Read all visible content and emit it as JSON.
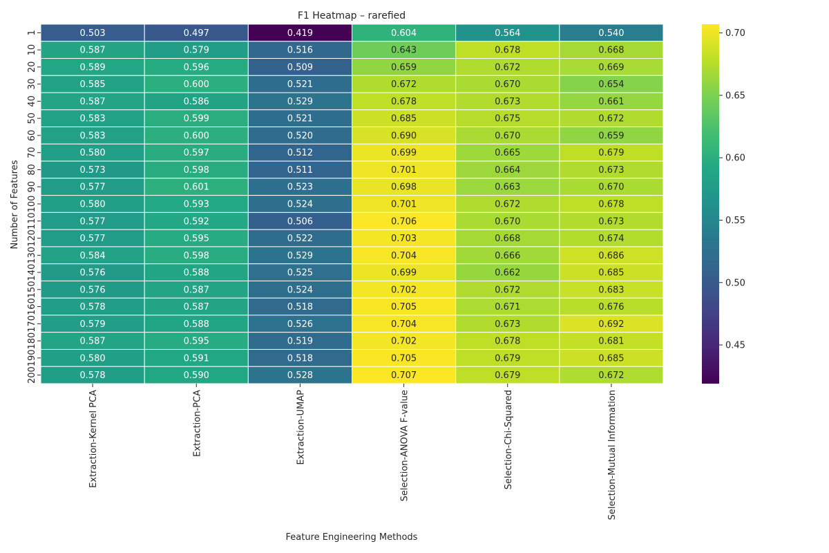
{
  "chart_data": {
    "type": "heatmap",
    "title": "F1 Heatmap – rarefied",
    "xlabel": "Feature Engineering Methods",
    "ylabel": "Number of Features",
    "columns": [
      "Extraction-Kernel PCA",
      "Extraction-PCA",
      "Extraction-UMAP",
      "Selection-ANOVA F-value",
      "Selection-Chi-Squared",
      "Selection-Mutual Information"
    ],
    "rows": [
      "1",
      "10",
      "20",
      "30",
      "40",
      "50",
      "60",
      "70",
      "80",
      "90",
      "100",
      "110",
      "120",
      "130",
      "140",
      "150",
      "160",
      "170",
      "180",
      "190",
      "200"
    ],
    "values": [
      [
        0.503,
        0.497,
        0.419,
        0.604,
        0.564,
        0.54
      ],
      [
        0.587,
        0.579,
        0.516,
        0.643,
        0.678,
        0.668
      ],
      [
        0.589,
        0.596,
        0.509,
        0.659,
        0.672,
        0.669
      ],
      [
        0.585,
        0.6,
        0.521,
        0.672,
        0.67,
        0.654
      ],
      [
        0.587,
        0.586,
        0.529,
        0.678,
        0.673,
        0.661
      ],
      [
        0.583,
        0.599,
        0.521,
        0.685,
        0.675,
        0.672
      ],
      [
        0.583,
        0.6,
        0.52,
        0.69,
        0.67,
        0.659
      ],
      [
        0.58,
        0.597,
        0.512,
        0.699,
        0.665,
        0.679
      ],
      [
        0.573,
        0.598,
        0.511,
        0.701,
        0.664,
        0.673
      ],
      [
        0.577,
        0.601,
        0.523,
        0.698,
        0.663,
        0.67
      ],
      [
        0.58,
        0.593,
        0.524,
        0.701,
        0.672,
        0.678
      ],
      [
        0.577,
        0.592,
        0.506,
        0.706,
        0.67,
        0.673
      ],
      [
        0.577,
        0.595,
        0.522,
        0.703,
        0.668,
        0.674
      ],
      [
        0.584,
        0.598,
        0.529,
        0.704,
        0.666,
        0.686
      ],
      [
        0.576,
        0.588,
        0.525,
        0.699,
        0.662,
        0.685
      ],
      [
        0.576,
        0.587,
        0.524,
        0.702,
        0.672,
        0.683
      ],
      [
        0.578,
        0.587,
        0.518,
        0.705,
        0.671,
        0.676
      ],
      [
        0.579,
        0.588,
        0.526,
        0.704,
        0.673,
        0.692
      ],
      [
        0.587,
        0.595,
        0.519,
        0.702,
        0.678,
        0.681
      ],
      [
        0.58,
        0.591,
        0.518,
        0.705,
        0.679,
        0.685
      ],
      [
        0.578,
        0.59,
        0.528,
        0.707,
        0.679,
        0.672
      ]
    ],
    "colormap": "viridis",
    "vmin": 0.419,
    "vmax": 0.707,
    "colorbar_ticks": [
      "0.45",
      "0.50",
      "0.55",
      "0.60",
      "0.65",
      "0.70"
    ],
    "grid": false,
    "legend": "colorbar-right"
  }
}
